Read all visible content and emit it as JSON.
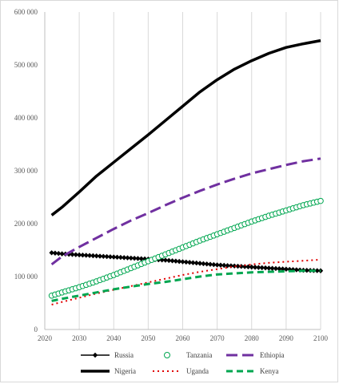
{
  "chart_data": {
    "type": "line",
    "title": "",
    "xlabel": "",
    "ylabel": "",
    "xlim": [
      2020,
      2100
    ],
    "ylim": [
      0,
      600000
    ],
    "x_ticks": [
      "2020",
      "2030",
      "2040",
      "2050",
      "2060",
      "2070",
      "2080",
      "2090",
      "2100"
    ],
    "y_ticks": [
      "0",
      "100 000",
      "200 000",
      "300 000",
      "400 000",
      "500 000",
      "600 000"
    ],
    "grid": "vertical",
    "legend_position": "bottom",
    "x": [
      2022,
      2025,
      2030,
      2035,
      2040,
      2045,
      2050,
      2055,
      2060,
      2065,
      2070,
      2075,
      2080,
      2085,
      2090,
      2095,
      2100
    ],
    "series": [
      {
        "name": "Russia",
        "color": "#000000",
        "style": "solid-diamond",
        "values": [
          145000,
          143000,
          141000,
          139000,
          137000,
          135000,
          133000,
          131000,
          128000,
          125000,
          122000,
          120000,
          118000,
          116000,
          114000,
          112000,
          111000
        ]
      },
      {
        "name": "Tanzania",
        "color": "#00a650",
        "style": "circle",
        "values": [
          64000,
          70000,
          80000,
          91000,
          103000,
          116000,
          129000,
          142000,
          155000,
          168000,
          180000,
          192000,
          204000,
          215000,
          225000,
          235000,
          243000
        ]
      },
      {
        "name": "Ethiopia",
        "color": "#7030a0",
        "style": "long-dash",
        "values": [
          123000,
          138000,
          156000,
          173000,
          190000,
          206000,
          220000,
          235000,
          249000,
          262000,
          274000,
          285000,
          295000,
          303000,
          311000,
          318000,
          323000
        ]
      },
      {
        "name": "Nigeria",
        "color": "#000000",
        "style": "thick-solid",
        "values": [
          216000,
          231000,
          260000,
          290000,
          316000,
          342000,
          368000,
          395000,
          422000,
          449000,
          472000,
          492000,
          508000,
          522000,
          533000,
          540000,
          546000
        ]
      },
      {
        "name": "Uganda",
        "color": "#e00000",
        "style": "dotted",
        "values": [
          47000,
          52000,
          60000,
          68000,
          75000,
          82000,
          89000,
          96000,
          103000,
          109000,
          114000,
          119000,
          123000,
          126000,
          128000,
          130000,
          132000
        ]
      },
      {
        "name": "Kenya",
        "color": "#00a650",
        "style": "dashed",
        "values": [
          54000,
          58000,
          64000,
          70000,
          76000,
          81000,
          86000,
          90000,
          95000,
          100000,
          104000,
          106000,
          108000,
          109000,
          110000,
          111000,
          111000
        ]
      }
    ]
  }
}
